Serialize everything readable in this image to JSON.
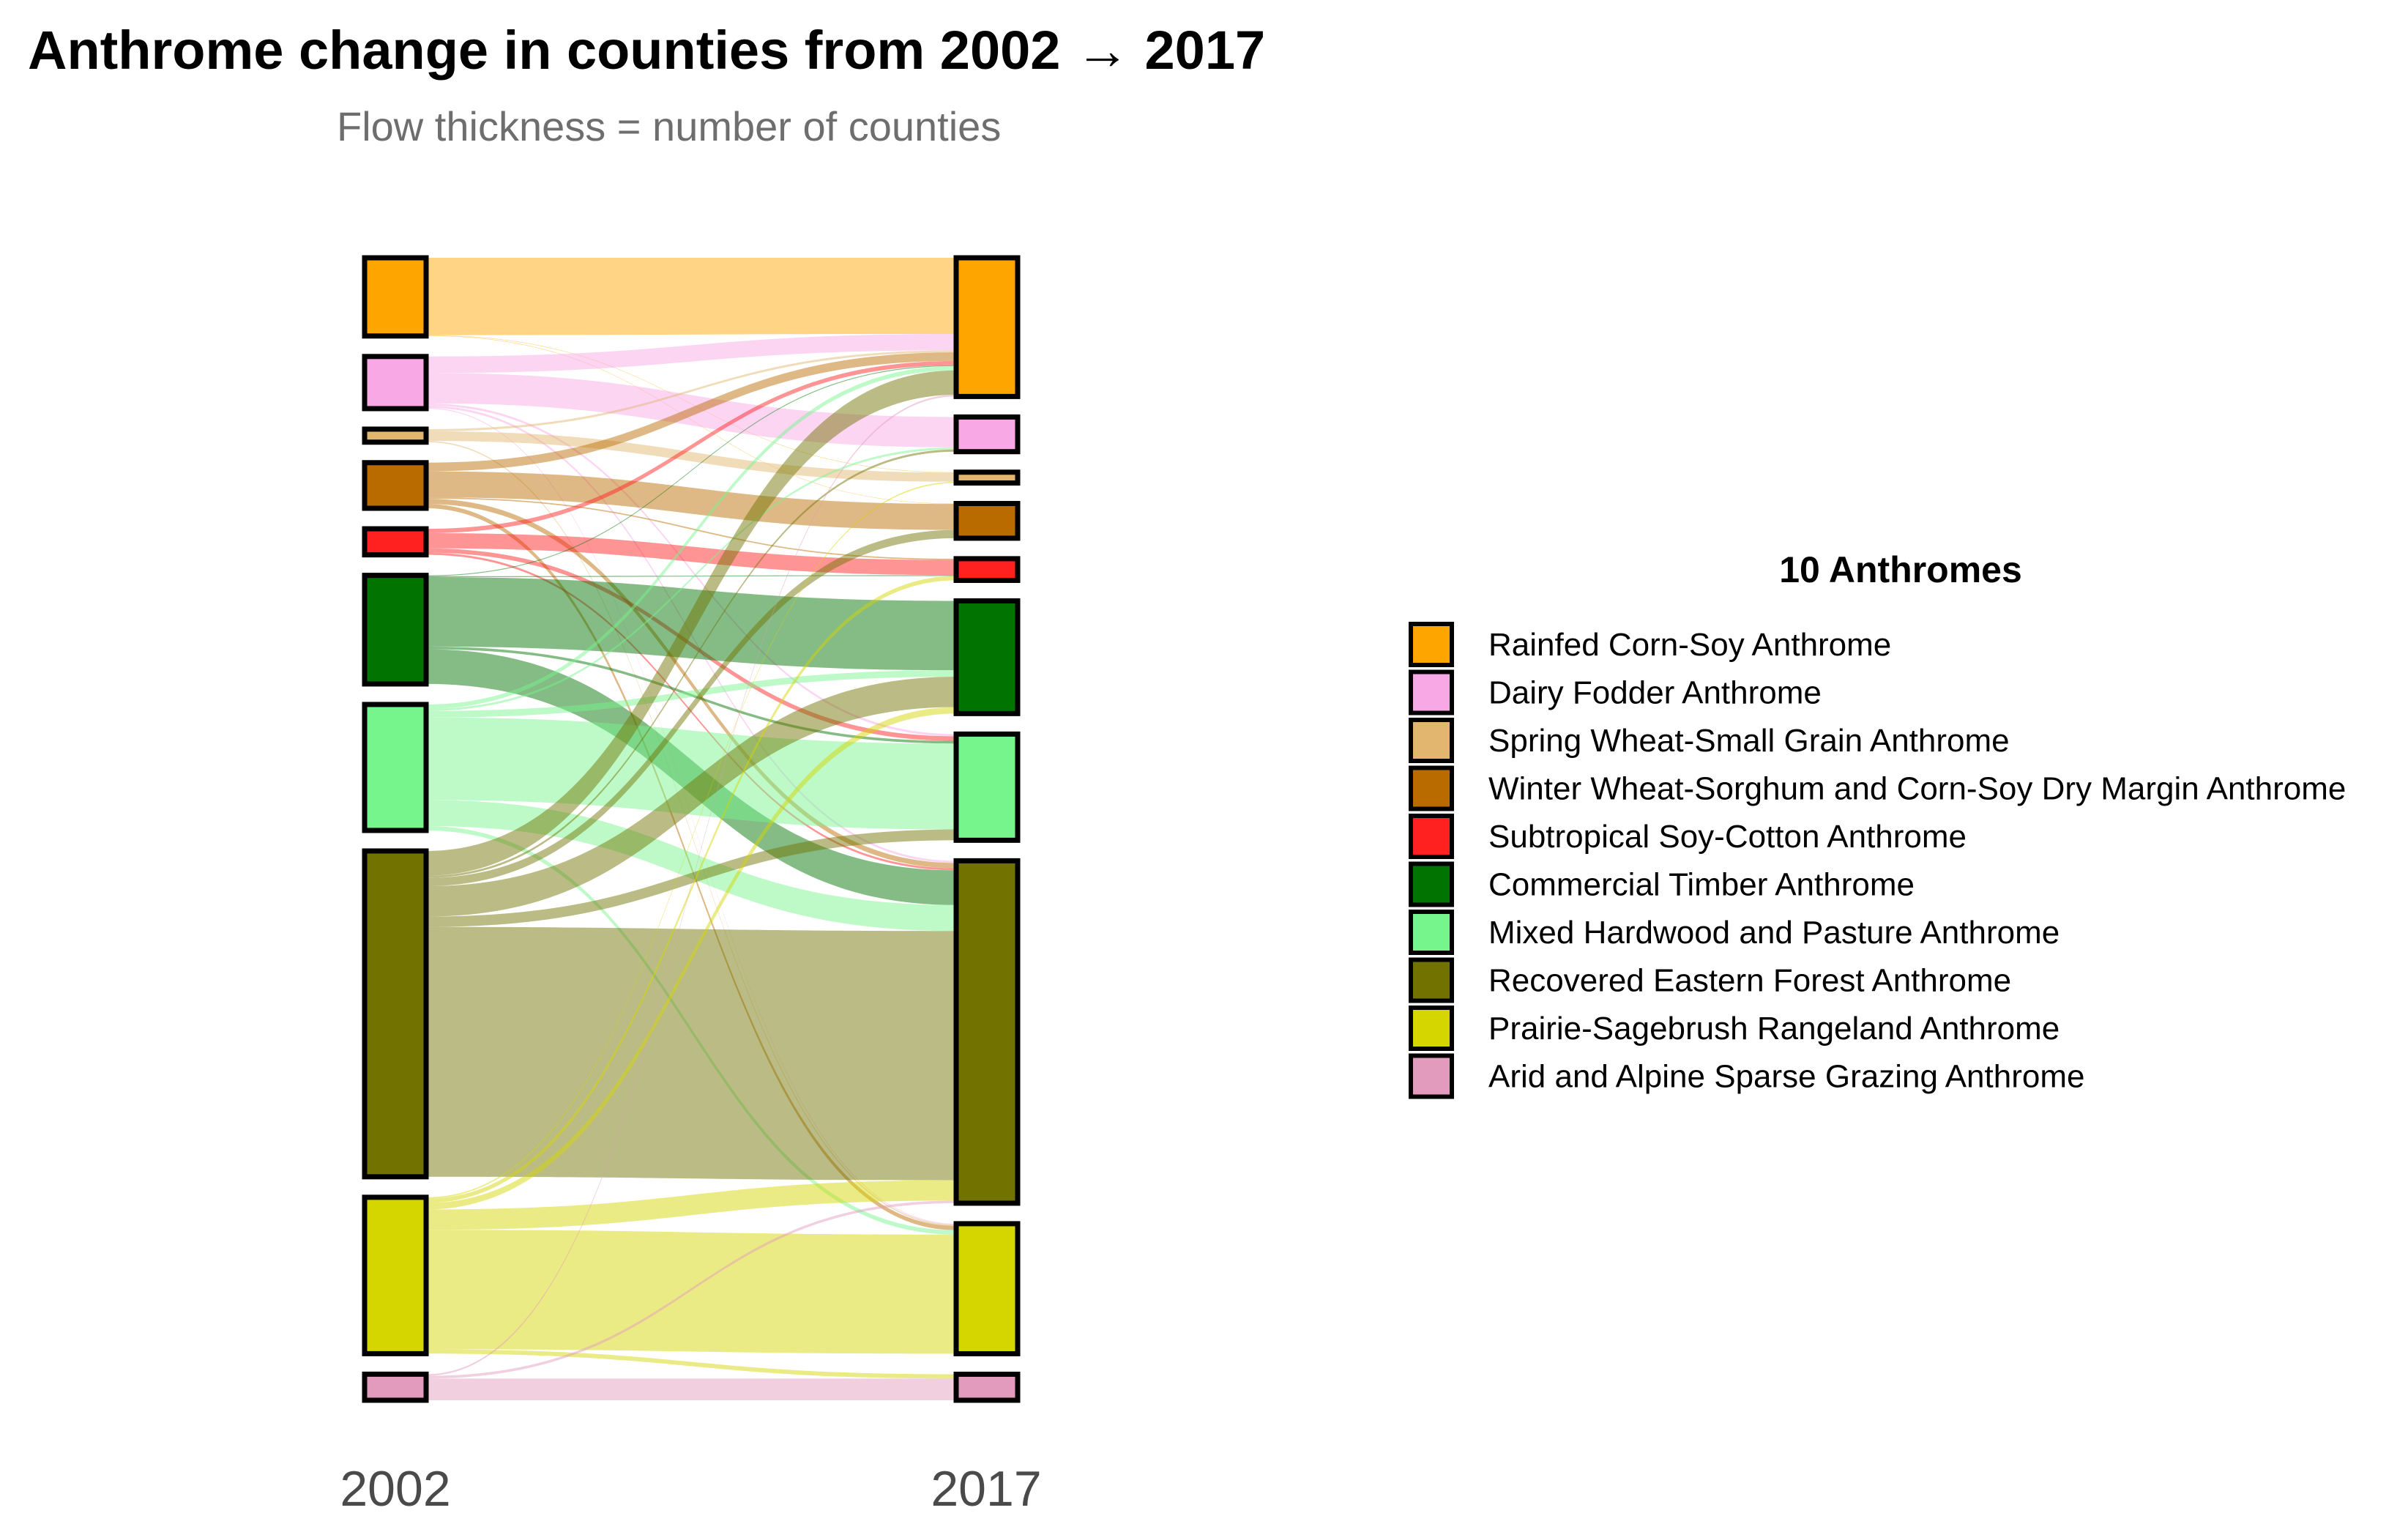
{
  "chart_data": {
    "type": "sankey",
    "title": "Anthrome change in counties from 2002 → 2017",
    "subtitle": "Flow thickness = number of counties",
    "axes": [
      "2002",
      "2017"
    ],
    "legend": {
      "title": "10 Anthromes",
      "position": "right"
    },
    "categories": [
      {
        "name": "Rainfed Corn-Soy Anthrome",
        "color": "#FFA500"
      },
      {
        "name": "Dairy Fodder Anthrome",
        "color": "#F9A8E6"
      },
      {
        "name": "Spring Wheat-Small Grain Anthrome",
        "color": "#E2B66E"
      },
      {
        "name": "Winter Wheat-Sorghum and Corn-Soy Dry Margin Anthrome",
        "color": "#B96B00"
      },
      {
        "name": "Subtropical Soy-Cotton Anthrome",
        "color": "#FF2020"
      },
      {
        "name": "Commercial Timber Anthrome",
        "color": "#007300"
      },
      {
        "name": "Mixed Hardwood and Pasture Anthrome",
        "color": "#76F58C"
      },
      {
        "name": "Recovered Eastern Forest Anthrome",
        "color": "#717200"
      },
      {
        "name": "Prairie-Sagebrush Rangeland Anthrome",
        "color": "#D5D600"
      },
      {
        "name": "Arid and Alpine Sparse Grazing Anthrome",
        "color": "#E29BBC"
      }
    ],
    "nodes_2002": [
      180,
      120,
      30,
      105,
      60,
      250,
      290,
      750,
      360,
      60
    ],
    "nodes_2017": [
      320,
      80,
      25,
      80,
      50,
      260,
      245,
      790,
      300,
      60
    ],
    "flows": [
      {
        "from": 0,
        "to": 0,
        "value": 178
      },
      {
        "from": 0,
        "to": 2,
        "value": 1
      },
      {
        "from": 0,
        "to": 3,
        "value": 1
      },
      {
        "from": 1,
        "to": 0,
        "value": 38
      },
      {
        "from": 1,
        "to": 1,
        "value": 70
      },
      {
        "from": 1,
        "to": 6,
        "value": 5
      },
      {
        "from": 1,
        "to": 7,
        "value": 5
      },
      {
        "from": 1,
        "to": 8,
        "value": 2
      },
      {
        "from": 2,
        "to": 0,
        "value": 5
      },
      {
        "from": 2,
        "to": 2,
        "value": 22
      },
      {
        "from": 2,
        "to": 8,
        "value": 3
      },
      {
        "from": 3,
        "to": 0,
        "value": 20
      },
      {
        "from": 3,
        "to": 3,
        "value": 60
      },
      {
        "from": 3,
        "to": 4,
        "value": 3
      },
      {
        "from": 3,
        "to": 7,
        "value": 12
      },
      {
        "from": 3,
        "to": 8,
        "value": 10
      },
      {
        "from": 4,
        "to": 0,
        "value": 10
      },
      {
        "from": 4,
        "to": 4,
        "value": 35
      },
      {
        "from": 4,
        "to": 6,
        "value": 10
      },
      {
        "from": 4,
        "to": 7,
        "value": 5
      },
      {
        "from": 5,
        "to": 0,
        "value": 2
      },
      {
        "from": 5,
        "to": 4,
        "value": 2
      },
      {
        "from": 5,
        "to": 5,
        "value": 160
      },
      {
        "from": 5,
        "to": 6,
        "value": 6
      },
      {
        "from": 5,
        "to": 7,
        "value": 80
      },
      {
        "from": 6,
        "to": 0,
        "value": 10
      },
      {
        "from": 6,
        "to": 1,
        "value": 5
      },
      {
        "from": 6,
        "to": 5,
        "value": 15
      },
      {
        "from": 6,
        "to": 6,
        "value": 190
      },
      {
        "from": 6,
        "to": 7,
        "value": 60
      },
      {
        "from": 6,
        "to": 8,
        "value": 10
      },
      {
        "from": 7,
        "to": 0,
        "value": 57
      },
      {
        "from": 7,
        "to": 1,
        "value": 5
      },
      {
        "from": 7,
        "to": 3,
        "value": 19
      },
      {
        "from": 7,
        "to": 5,
        "value": 70
      },
      {
        "from": 7,
        "to": 6,
        "value": 24
      },
      {
        "from": 7,
        "to": 7,
        "value": 575
      },
      {
        "from": 7,
        "to": 8,
        "value": 0
      },
      {
        "from": 8,
        "to": 2,
        "value": 3
      },
      {
        "from": 8,
        "to": 4,
        "value": 10
      },
      {
        "from": 8,
        "to": 5,
        "value": 15
      },
      {
        "from": 8,
        "to": 6,
        "value": 0
      },
      {
        "from": 8,
        "to": 7,
        "value": 47
      },
      {
        "from": 8,
        "to": 8,
        "value": 275
      },
      {
        "from": 8,
        "to": 9,
        "value": 10
      },
      {
        "from": 9,
        "to": 6,
        "value": 0
      },
      {
        "from": 9,
        "to": 7,
        "value": 6
      },
      {
        "from": 9,
        "to": 9,
        "value": 50
      },
      {
        "from": 9,
        "to": 8,
        "value": 0
      },
      {
        "from": 9,
        "to": 1,
        "value": 0
      },
      {
        "from": 9,
        "to": 0,
        "value": 4
      }
    ]
  }
}
